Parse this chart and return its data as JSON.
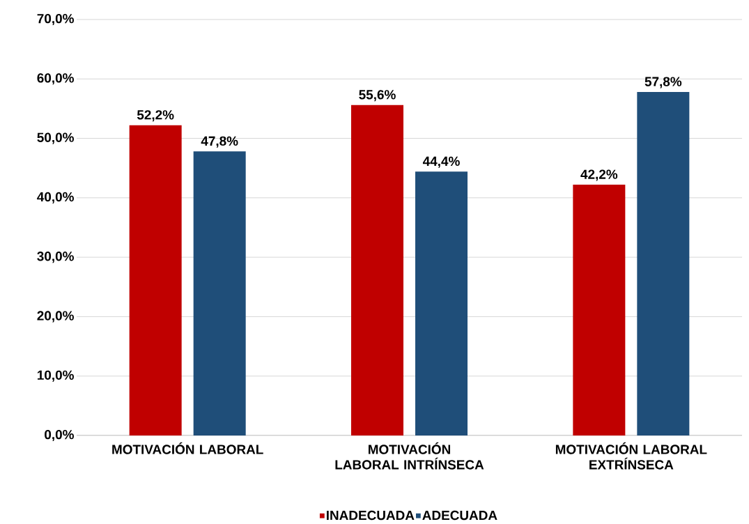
{
  "chart_data": {
    "type": "bar",
    "categories": [
      "MOTIVACIÓN LABORAL",
      "MOTIVACIÓN LABORAL INTRÍNSECA",
      "MOTIVACIÓN LABORAL EXTRÍNSECA"
    ],
    "series": [
      {
        "name": "INADECUADA",
        "color": "#c00000",
        "values": [
          52.2,
          55.6,
          42.2
        ],
        "value_labels": [
          "52,2%",
          "55,6%",
          "42,2%"
        ]
      },
      {
        "name": "ADECUADA",
        "color": "#1f4e79",
        "values": [
          47.8,
          44.4,
          57.8
        ],
        "value_labels": [
          "47,8%",
          "44,4%",
          "57,8%"
        ]
      }
    ],
    "ylim": [
      0,
      70
    ],
    "yticks": [
      {
        "value": 0,
        "label": "0,0%"
      },
      {
        "value": 10,
        "label": "10,0%"
      },
      {
        "value": 20,
        "label": "20,0%"
      },
      {
        "value": 30,
        "label": "30,0%"
      },
      {
        "value": 40,
        "label": "40,0%"
      },
      {
        "value": 50,
        "label": "50,0%"
      },
      {
        "value": 60,
        "label": "60,0%"
      },
      {
        "value": 70,
        "label": "70,0%"
      }
    ],
    "grid": "y",
    "legend": "bottom"
  }
}
